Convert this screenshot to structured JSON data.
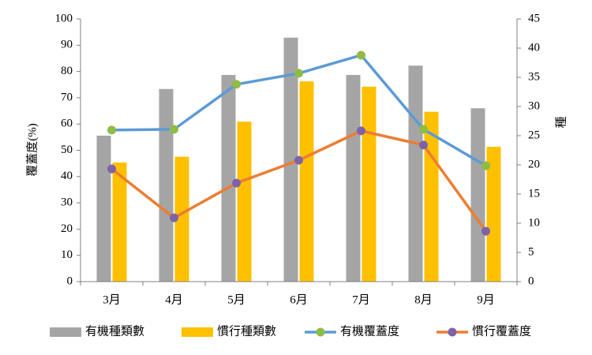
{
  "chart_data": {
    "type": "combo",
    "categories": [
      "3月",
      "4月",
      "5月",
      "6月",
      "7月",
      "8月",
      "9月"
    ],
    "y_label": "覆蓋度(%)",
    "y2_label": "種",
    "ylim": [
      0,
      100
    ],
    "yticks": [
      0,
      10,
      20,
      30,
      40,
      50,
      60,
      70,
      80,
      90,
      100
    ],
    "y2lim": [
      0,
      45
    ],
    "y2ticks": [
      0,
      5,
      10,
      15,
      20,
      25,
      30,
      35,
      40,
      45
    ],
    "legend": "bottom",
    "series": [
      {
        "name": "有機種類數",
        "type": "bar",
        "axis": "y2",
        "color": "#a5a5a5",
        "values": [
          25.0,
          33.0,
          35.4,
          41.8,
          35.4,
          37.0,
          29.7
        ]
      },
      {
        "name": "慣行種類數",
        "type": "bar",
        "axis": "y2",
        "color": "#ffc000",
        "values": [
          20.4,
          21.4,
          27.4,
          34.3,
          33.4,
          29.1,
          23.1
        ]
      },
      {
        "name": "有機覆蓋度",
        "type": "line",
        "color": "#5b9bd5",
        "marker_color": "#8fbc45",
        "values": [
          57.7,
          58.0,
          75.1,
          79.3,
          86.2,
          58.0,
          44.1
        ]
      },
      {
        "name": "慣行覆蓋度",
        "type": "line",
        "color": "#ed7d31",
        "marker_color": "#7e62a8",
        "values": [
          42.9,
          24.3,
          37.5,
          46.2,
          57.4,
          52.0,
          19.2
        ]
      }
    ]
  }
}
